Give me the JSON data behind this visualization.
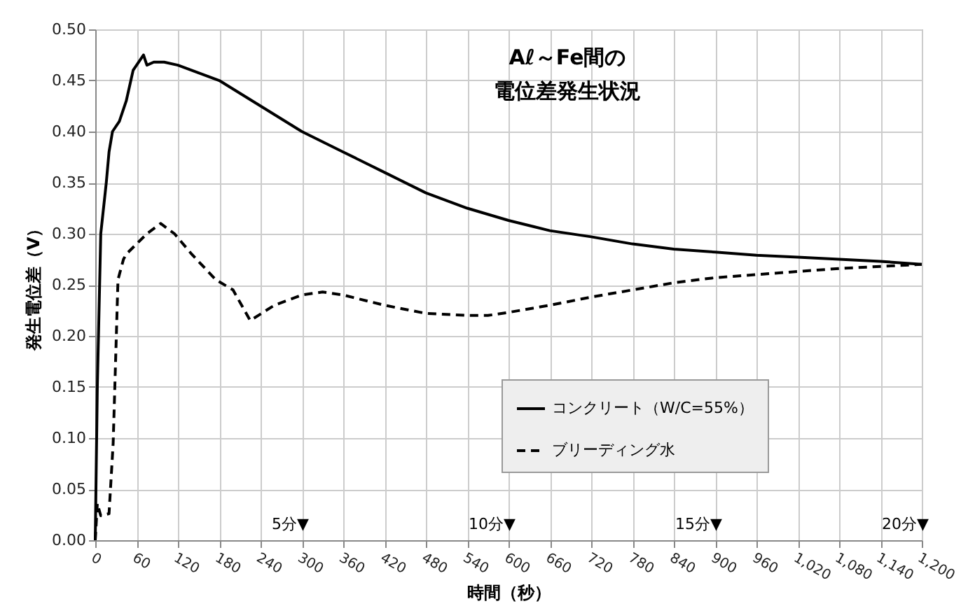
{
  "chart_data": {
    "type": "line",
    "title": "Aℓ～Fe間の電位差発生状況",
    "xlabel": "時間（秒）",
    "ylabel": "発生電位差（V）",
    "xlim": [
      0,
      1200
    ],
    "xticks": [
      0,
      60,
      120,
      180,
      240,
      300,
      360,
      420,
      480,
      540,
      600,
      660,
      720,
      780,
      840,
      900,
      960,
      {
        "value": 1020,
        "label": "1,020"
      },
      {
        "value": 1080,
        "label": "1,080"
      },
      {
        "value": 1140,
        "label": "1,140"
      },
      {
        "value": 1200,
        "label": "1,200"
      }
    ],
    "ylim": [
      0,
      0.5
    ],
    "yticks": [
      {
        "value": 0,
        "label": "0.00"
      },
      {
        "value": 0.05,
        "label": "0.05"
      },
      {
        "value": 0.1,
        "label": "0.10"
      },
      {
        "value": 0.15,
        "label": "0.15"
      },
      {
        "value": 0.2,
        "label": "0.20"
      },
      {
        "value": 0.25,
        "label": "0.25"
      },
      {
        "value": 0.3,
        "label": "0.30"
      },
      {
        "value": 0.35,
        "label": "0.35"
      },
      {
        "value": 0.4,
        "label": "0.40"
      },
      {
        "value": 0.45,
        "label": "0.45"
      },
      {
        "value": 0.5,
        "label": "0.50"
      }
    ],
    "grid": true,
    "legend": "bottom right",
    "marker": "none",
    "series": [
      {
        "name": "コンクリート（W/C=55%）",
        "color": "#000000",
        "line_style": "solid",
        "x": [
          0,
          3,
          8,
          16,
          20,
          25,
          35,
          45,
          55,
          65,
          70,
          75,
          85,
          100,
          120,
          180,
          240,
          300,
          360,
          420,
          480,
          540,
          600,
          660,
          720,
          780,
          840,
          900,
          960,
          1020,
          1080,
          1140,
          1200
        ],
        "values": [
          0,
          0.15,
          0.3,
          0.35,
          0.38,
          0.4,
          0.41,
          0.43,
          0.46,
          0.47,
          0.475,
          0.465,
          0.468,
          0.468,
          0.465,
          0.45,
          0.425,
          0.4,
          0.38,
          0.36,
          0.34,
          0.325,
          0.313,
          0.303,
          0.297,
          0.29,
          0.285,
          0.282,
          0.279,
          0.277,
          0.275,
          0.273,
          0.27
        ]
      },
      {
        "name": "ブリーディング水",
        "color": "#000000",
        "line_style": "dashed",
        "x": [
          0,
          3,
          8,
          20,
          26,
          33,
          41,
          45,
          60,
          75,
          95,
          115,
          140,
          175,
          200,
          225,
          260,
          300,
          330,
          360,
          420,
          480,
          540,
          570,
          600,
          660,
          720,
          780,
          840,
          900,
          960,
          1020,
          1080,
          1140,
          1200
        ],
        "values": [
          0,
          0.036,
          0.024,
          0.026,
          0.095,
          0.255,
          0.275,
          0.28,
          0.29,
          0.3,
          0.31,
          0.3,
          0.28,
          0.255,
          0.245,
          0.215,
          0.23,
          0.24,
          0.243,
          0.24,
          0.23,
          0.222,
          0.22,
          0.22,
          0.223,
          0.23,
          0.238,
          0.245,
          0.252,
          0.257,
          0.26,
          0.263,
          0.266,
          0.268,
          0.27
        ]
      }
    ],
    "annotations": [
      "5分▼",
      "10分▼",
      "15分▼",
      "20分▼"
    ]
  }
}
